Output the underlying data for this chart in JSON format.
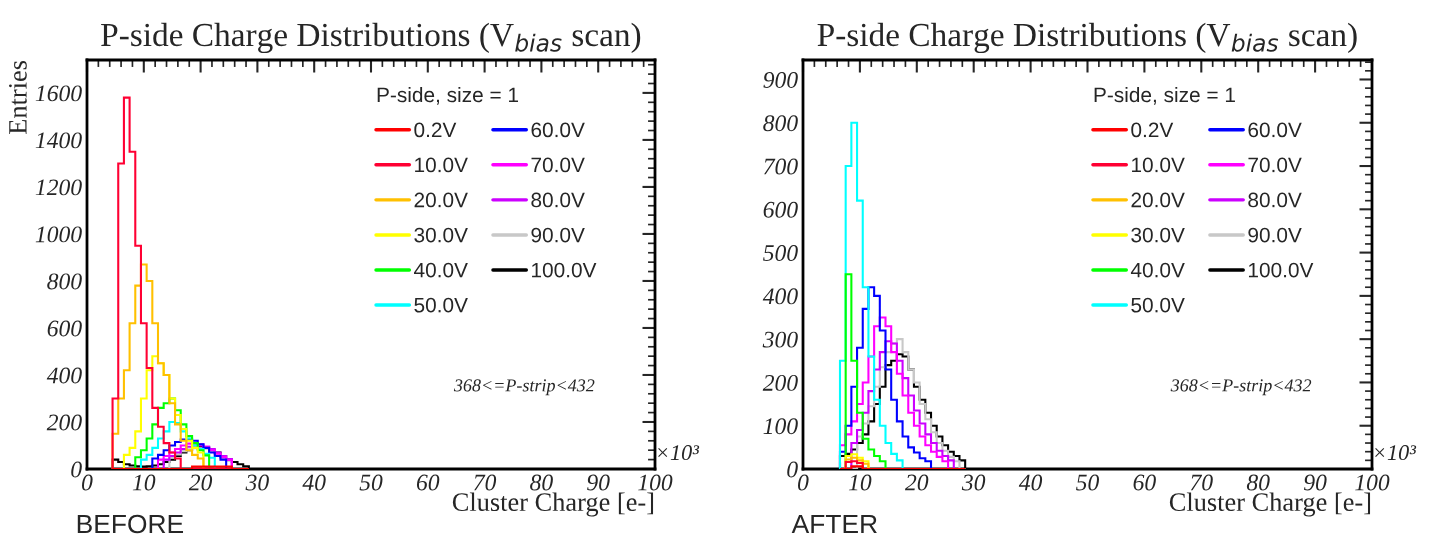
{
  "chart_data": [
    {
      "type": "histogram",
      "title": "P-side Charge Distributions (V$_{bias}$ scan)",
      "xlabel": "Cluster Charge [e-]",
      "ylabel": "Entries",
      "legend_title": "P-side, size = 1",
      "legend": "top right",
      "annotations": [
        "368<=P-strip<432",
        "×10³",
        "BEFORE"
      ],
      "xlim": [
        0,
        100
      ],
      "xticks": [
        0,
        10,
        20,
        30,
        40,
        50,
        60,
        70,
        80,
        90,
        100
      ],
      "ylim": [
        0,
        1740
      ],
      "yticks": [
        0,
        200,
        400,
        600,
        800,
        1000,
        1200,
        1400,
        1600
      ],
      "bins": [
        4.5,
        5.5,
        6.5,
        7.5,
        8.5,
        9.5,
        10.5,
        11.5,
        12.5,
        13.5,
        14.5,
        15.5,
        16.5,
        17.5,
        18.5,
        19.5,
        20.5,
        21.5,
        22.5,
        23.5,
        24.5,
        25.5,
        26.5,
        27.5,
        28.5
      ],
      "series": [
        {
          "name": "0.2V",
          "color": "#ff0000",
          "values": [
            0,
            0,
            0,
            0,
            0,
            0,
            0,
            0,
            0,
            0,
            0,
            0,
            0,
            0,
            10,
            10,
            10,
            10,
            10,
            10,
            10,
            0,
            0,
            0
          ]
        },
        {
          "name": "10.0V",
          "color": "#ff0033",
          "values": [
            300,
            1300,
            1580,
            1350,
            950,
            620,
            430,
            260,
            180,
            110,
            70,
            45,
            0,
            0,
            0,
            0,
            0,
            0,
            0,
            0,
            0,
            0,
            0,
            0
          ]
        },
        {
          "name": "20.0V",
          "color": "#ffc000",
          "values": [
            150,
            300,
            420,
            620,
            780,
            870,
            800,
            620,
            450,
            400,
            280,
            190,
            120,
            80,
            60,
            45,
            0,
            0,
            0,
            0,
            0,
            0,
            0,
            0
          ]
        },
        {
          "name": "30.0V",
          "color": "#ffff00",
          "values": [
            0,
            0,
            60,
            90,
            160,
            300,
            420,
            480,
            450,
            400,
            300,
            230,
            170,
            120,
            90,
            70,
            0,
            0,
            0,
            0,
            0,
            0,
            0,
            0
          ]
        },
        {
          "name": "40.0V",
          "color": "#00ff00",
          "values": [
            0,
            0,
            0,
            0,
            50,
            80,
            130,
            190,
            260,
            280,
            300,
            250,
            190,
            140,
            110,
            80,
            58,
            0,
            0,
            0,
            0,
            0,
            0,
            0
          ]
        },
        {
          "name": "50.0V",
          "color": "#00ffff",
          "values": [
            0,
            0,
            0,
            0,
            0,
            40,
            60,
            90,
            130,
            160,
            200,
            195,
            160,
            130,
            100,
            85,
            65,
            48,
            0,
            0,
            0,
            0,
            0,
            0
          ]
        },
        {
          "name": "60.0V",
          "color": "#0000ff",
          "values": [
            0,
            0,
            0,
            0,
            0,
            0,
            0,
            45,
            60,
            80,
            100,
            115,
            125,
            125,
            120,
            105,
            90,
            70,
            55,
            40,
            0,
            0,
            0,
            0
          ]
        },
        {
          "name": "70.0V",
          "color": "#ff00ff",
          "values": [
            0,
            0,
            0,
            0,
            0,
            0,
            0,
            0,
            40,
            55,
            70,
            85,
            100,
            108,
            110,
            105,
            95,
            80,
            65,
            50,
            38,
            0,
            0,
            0
          ]
        },
        {
          "name": "80.0V",
          "color": "#cc00ff",
          "values": [
            0,
            0,
            0,
            0,
            0,
            0,
            0,
            0,
            0,
            40,
            55,
            70,
            85,
            95,
            100,
            100,
            95,
            85,
            70,
            55,
            42,
            0,
            0,
            0
          ]
        },
        {
          "name": "90.0V",
          "color": "#c8c8c8",
          "values": [
            0,
            0,
            0,
            0,
            0,
            0,
            0,
            0,
            0,
            0,
            48,
            62,
            76,
            84,
            88,
            88,
            86,
            76,
            62,
            48,
            35,
            0,
            0,
            0
          ]
        },
        {
          "name": "100.0V",
          "color": "#000000",
          "values": [
            40,
            30,
            20,
            15,
            12,
            10,
            12,
            15,
            20,
            30,
            40,
            55,
            70,
            80,
            90,
            95,
            90,
            80,
            70,
            55,
            40,
            30,
            20,
            12
          ]
        }
      ]
    },
    {
      "type": "histogram",
      "title": "P-side Charge Distributions (V$_{bias}$ scan)",
      "xlabel": "Cluster Charge [e-]",
      "legend_title": "P-side, size = 1",
      "legend": "top right",
      "annotations": [
        "368<=P-strip<432",
        "×10³",
        "AFTER"
      ],
      "xlim": [
        0,
        100
      ],
      "xticks": [
        0,
        10,
        20,
        30,
        40,
        50,
        60,
        70,
        80,
        90,
        100
      ],
      "ylim": [
        0,
        945
      ],
      "yticks": [
        0,
        100,
        200,
        300,
        400,
        500,
        600,
        700,
        800,
        900
      ],
      "bins": [
        6.5,
        7.5,
        8.5,
        9.5,
        10.5,
        11.5,
        12.5,
        13.5,
        14.5,
        15.5,
        16.5,
        17.5,
        18.5,
        19.5,
        20.5,
        21.5,
        22.5,
        23.5,
        24.5,
        25.5,
        26.5,
        27.5,
        28.5
      ],
      "series": [
        {
          "name": "0.2V",
          "color": "#ff0000",
          "values": [
            0,
            0,
            6,
            6,
            0,
            0,
            0,
            0,
            0,
            0,
            0,
            0,
            0,
            0,
            0,
            0,
            0,
            0,
            0,
            0,
            0,
            0
          ]
        },
        {
          "name": "10.0V",
          "color": "#ff0033",
          "values": [
            0,
            16,
            18,
            14,
            0,
            0,
            0,
            0,
            0,
            0,
            0,
            0,
            0,
            0,
            0,
            0,
            0,
            0,
            0,
            0,
            0,
            0
          ]
        },
        {
          "name": "20.0V",
          "color": "#ffc000",
          "values": [
            0,
            22,
            26,
            20,
            12,
            0,
            0,
            0,
            0,
            0,
            0,
            0,
            0,
            0,
            0,
            0,
            0,
            0,
            0,
            0,
            0,
            0
          ]
        },
        {
          "name": "30.0V",
          "color": "#ffff00",
          "values": [
            0,
            30,
            34,
            26,
            18,
            0,
            0,
            0,
            0,
            0,
            0,
            0,
            0,
            0,
            0,
            0,
            0,
            0,
            0,
            0,
            0,
            0
          ]
        },
        {
          "name": "40.0V",
          "color": "#00ff00",
          "values": [
            0,
            450,
            250,
            130,
            70,
            45,
            30,
            18,
            0,
            0,
            0,
            0,
            0,
            0,
            0,
            0,
            0,
            0,
            0,
            0,
            0,
            0
          ]
        },
        {
          "name": "50.0V",
          "color": "#00ffff",
          "values": [
            250,
            700,
            800,
            620,
            420,
            260,
            160,
            100,
            60,
            35,
            20,
            0,
            0,
            0,
            0,
            0,
            0,
            0,
            0,
            0,
            0,
            0
          ]
        },
        {
          "name": "60.0V",
          "color": "#0000ff",
          "values": [
            40,
            100,
            190,
            280,
            370,
            420,
            400,
            320,
            230,
            160,
            110,
            75,
            50,
            38,
            25,
            18,
            0,
            0,
            0,
            0,
            0,
            0
          ]
        },
        {
          "name": "70.0V",
          "color": "#ff00ff",
          "values": [
            55,
            80,
            110,
            150,
            200,
            260,
            330,
            350,
            330,
            270,
            220,
            170,
            130,
            100,
            75,
            55,
            40,
            28,
            18,
            0,
            0,
            0
          ]
        },
        {
          "name": "80.0V",
          "color": "#cc00ff",
          "values": [
            0,
            0,
            60,
            90,
            130,
            180,
            230,
            270,
            295,
            290,
            250,
            210,
            170,
            135,
            105,
            80,
            60,
            42,
            30,
            20,
            0,
            0
          ]
        },
        {
          "name": "90.0V",
          "color": "#c8c8c8",
          "values": [
            0,
            0,
            0,
            75,
            105,
            145,
            190,
            235,
            270,
            290,
            300,
            270,
            230,
            200,
            150,
            115,
            85,
            60,
            42,
            28,
            18,
            0
          ]
        },
        {
          "name": "100.0V",
          "color": "#000000",
          "values": [
            30,
            35,
            45,
            60,
            80,
            110,
            150,
            190,
            240,
            250,
            265,
            260,
            230,
            190,
            160,
            130,
            100,
            75,
            55,
            40,
            30,
            20
          ]
        }
      ]
    }
  ]
}
